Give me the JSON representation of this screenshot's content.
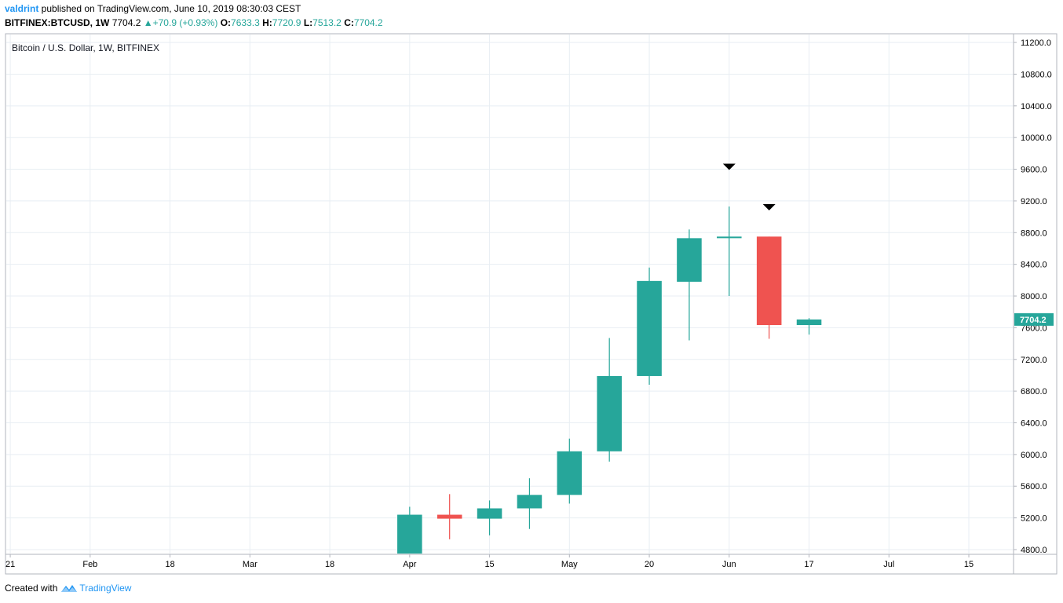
{
  "header": {
    "author": "valdrint",
    "published_text": " published on TradingView.com, June 10, 2019 08:30:03 CEST",
    "symbol": "BITFINEX:BTCUSD, 1W",
    "last_price": "7704.2",
    "change": "+70.9 (+0.93%)",
    "open_label": "O:",
    "open_value": "7633.3",
    "high_label": "H:",
    "high_value": "7720.9",
    "low_label": "L:",
    "low_value": "7513.2",
    "close_label": "C:",
    "close_value": "7704.2"
  },
  "footer": {
    "created_with": "Created with",
    "brand": "TradingView"
  },
  "colors": {
    "up": "#26a69a",
    "down": "#ef5350",
    "grid": "#e8eef3",
    "axis_text": "#000000",
    "marker": "#000000"
  },
  "chart_data": {
    "type": "candlestick",
    "title": "Bitcoin / U.S. Dollar, 1W, BITFINEX",
    "ylim": [
      4750,
      11300
    ],
    "y_ticks": [
      4800,
      5200,
      5600,
      6000,
      6400,
      6800,
      7200,
      7600,
      8000,
      8400,
      8800,
      9200,
      9600,
      10000,
      10400,
      10800,
      11200
    ],
    "y_tick_labels": [
      "4800.0",
      "5200.0",
      "5600.0",
      "6000.0",
      "6400.0",
      "6800.0",
      "7200.0",
      "7600.0",
      "8000.0",
      "8400.0",
      "8800.0",
      "9200.0",
      "9600.0",
      "10000.0",
      "10400.0",
      "10800.0",
      "11200.0"
    ],
    "x_ticks": [
      "21",
      "Feb",
      "18",
      "Mar",
      "18",
      "Apr",
      "15",
      "May",
      "20",
      "Jun",
      "17",
      "Jul",
      "15"
    ],
    "x_tick_positions": [
      -10,
      -8,
      -6,
      -4,
      -2,
      0,
      2,
      4,
      6,
      8,
      10,
      12,
      14
    ],
    "x_range": [
      -10.1,
      15.1
    ],
    "candles": [
      {
        "t": 0,
        "o": 4100,
        "h": 5340,
        "l": 4100,
        "c": 5240
      },
      {
        "t": 1,
        "o": 5240,
        "h": 5500,
        "l": 4930,
        "c": 5190
      },
      {
        "t": 2,
        "o": 5190,
        "h": 5420,
        "l": 4980,
        "c": 5320
      },
      {
        "t": 3,
        "o": 5320,
        "h": 5700,
        "l": 5060,
        "c": 5490
      },
      {
        "t": 4,
        "o": 5490,
        "h": 6200,
        "l": 5380,
        "c": 6040
      },
      {
        "t": 5,
        "o": 6040,
        "h": 7470,
        "l": 5910,
        "c": 6990
      },
      {
        "t": 6,
        "o": 6990,
        "h": 8360,
        "l": 6880,
        "c": 8190
      },
      {
        "t": 7,
        "o": 8180,
        "h": 8840,
        "l": 7440,
        "c": 8730
      },
      {
        "t": 8,
        "o": 8730,
        "h": 9130,
        "l": 8000,
        "c": 8750
      },
      {
        "t": 9,
        "o": 8750,
        "h": 8750,
        "l": 7460,
        "c": 7633.3
      },
      {
        "t": 10,
        "o": 7633.3,
        "h": 7720.9,
        "l": 7513.2,
        "c": 7704.2
      }
    ],
    "markers": [
      {
        "t": 8,
        "price": 9630,
        "shape": "down-triangle"
      },
      {
        "t": 9,
        "price": 9120,
        "shape": "down-triangle"
      }
    ],
    "last_price_label": "7704.2",
    "last_price": 7704.2
  }
}
